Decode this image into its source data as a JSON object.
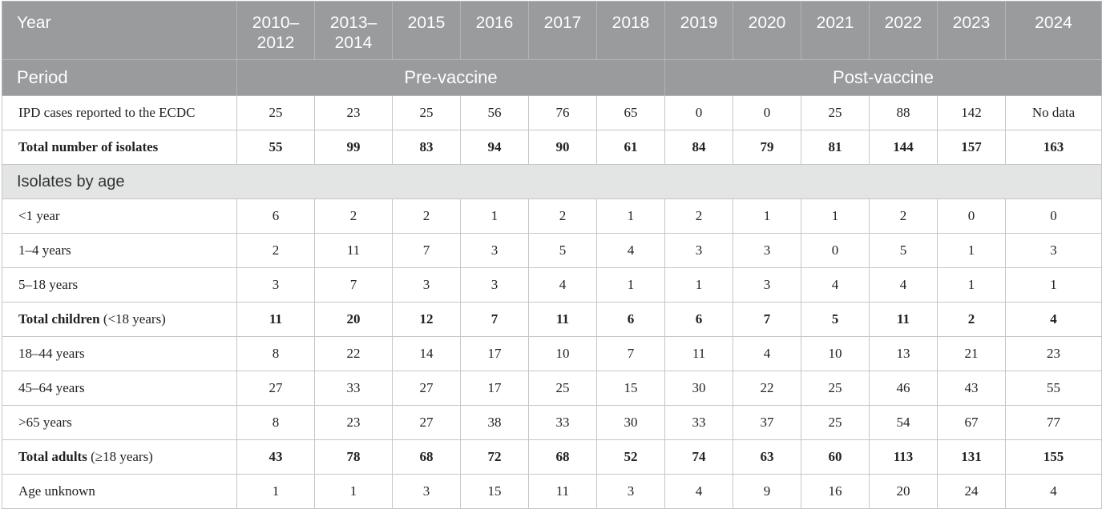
{
  "header": {
    "year_label": "Year",
    "years": [
      "2010–2012",
      "2013–2014",
      "2015",
      "2016",
      "2017",
      "2018",
      "2019",
      "2020",
      "2021",
      "2022",
      "2023",
      "2024"
    ],
    "period_label": "Period",
    "pre_vaccine": "Pre-vaccine",
    "post_vaccine": "Post-vaccine"
  },
  "rows": [
    {
      "label": "IPD cases reported to the ECDC",
      "values": [
        "25",
        "23",
        "25",
        "56",
        "76",
        "65",
        "0",
        "0",
        "25",
        "88",
        "142",
        "No data"
      ]
    },
    {
      "label": "Total number of isolates",
      "values": [
        "55",
        "99",
        "83",
        "94",
        "90",
        "61",
        "84",
        "79",
        "81",
        "144",
        "157",
        "163"
      ]
    }
  ],
  "section": {
    "label": "Isolates by age"
  },
  "age_rows": [
    {
      "label": "<1 year",
      "values": [
        "6",
        "2",
        "2",
        "1",
        "2",
        "1",
        "2",
        "1",
        "1",
        "2",
        "0",
        "0"
      ]
    },
    {
      "label": "1–4 years",
      "values": [
        "2",
        "11",
        "7",
        "3",
        "5",
        "4",
        "3",
        "3",
        "0",
        "5",
        "1",
        "3"
      ]
    },
    {
      "label": "5–18 years",
      "values": [
        "3",
        "7",
        "3",
        "3",
        "4",
        "1",
        "1",
        "3",
        "4",
        "4",
        "1",
        "1"
      ]
    },
    {
      "label": "Total children",
      "paren": "(<18 years)",
      "values": [
        "11",
        "20",
        "12",
        "7",
        "11",
        "6",
        "6",
        "7",
        "5",
        "11",
        "2",
        "4"
      ]
    },
    {
      "label": "18–44 years",
      "values": [
        "8",
        "22",
        "14",
        "17",
        "10",
        "7",
        "11",
        "4",
        "10",
        "13",
        "21",
        "23"
      ]
    },
    {
      "label": "45–64 years",
      "values": [
        "27",
        "33",
        "27",
        "17",
        "25",
        "15",
        "30",
        "22",
        "25",
        "46",
        "43",
        "55"
      ]
    },
    {
      "label": ">65 years",
      "values": [
        "8",
        "23",
        "27",
        "38",
        "33",
        "30",
        "33",
        "37",
        "25",
        "54",
        "67",
        "77"
      ]
    },
    {
      "label": "Total adults",
      "paren": "(≥18 years)",
      "values": [
        "43",
        "78",
        "68",
        "72",
        "68",
        "52",
        "74",
        "63",
        "60",
        "113",
        "131",
        "155"
      ]
    },
    {
      "label": "Age unknown",
      "values": [
        "1",
        "1",
        "3",
        "15",
        "11",
        "3",
        "4",
        "9",
        "16",
        "20",
        "24",
        "4"
      ]
    }
  ]
}
